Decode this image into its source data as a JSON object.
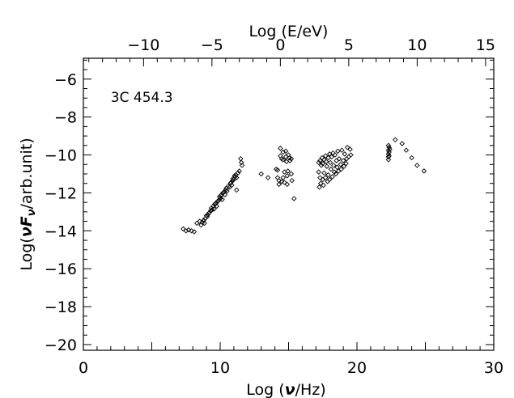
{
  "chart_data": {
    "type": "scatter",
    "source_annotation": "3C 454.3",
    "xlabel_prefix": "Log (",
    "xlabel_symbol": "ν",
    "xlabel_suffix": "/Hz)",
    "ylabel_prefix": "Log(",
    "ylabel_symbol": "νF",
    "ylabel_sub": "ν",
    "ylabel_suffix": "/arb.unit)",
    "top_xlabel": "Log (E/eV)",
    "xlim": [
      0,
      30
    ],
    "ylim": [
      -20.3,
      -4.9
    ],
    "top_xlim": [
      -14.4,
      15.6
    ],
    "x_ticks": [
      0,
      10,
      20,
      30
    ],
    "x_tick_labels": [
      "0",
      "10",
      "20",
      "30"
    ],
    "y_ticks": [
      -20,
      -18,
      -16,
      -14,
      -12,
      -10,
      -8,
      -6
    ],
    "y_tick_labels": [
      "−20",
      "−18",
      "−16",
      "−14",
      "−12",
      "−10",
      "−8",
      "−6"
    ],
    "top_x_ticks": [
      -10,
      -5,
      0,
      5,
      10,
      15
    ],
    "top_x_tick_labels": [
      "−10",
      "−5",
      "0",
      "5",
      "10",
      "15"
    ],
    "marker": "diamond-open",
    "series": [
      {
        "points": [
          [
            7.3,
            -13.9
          ],
          [
            7.5,
            -14.0
          ],
          [
            7.7,
            -13.95
          ],
          [
            7.9,
            -14.0
          ],
          [
            8.1,
            -14.05
          ],
          [
            8.3,
            -13.6
          ],
          [
            8.5,
            -13.5
          ],
          [
            8.6,
            -13.7
          ],
          [
            8.7,
            -13.55
          ],
          [
            8.8,
            -13.45
          ],
          [
            8.85,
            -13.6
          ],
          [
            8.9,
            -13.35
          ],
          [
            9.0,
            -13.2
          ],
          [
            9.05,
            -13.25
          ],
          [
            9.1,
            -13.15
          ],
          [
            9.2,
            -13.05
          ],
          [
            9.3,
            -12.95
          ],
          [
            9.35,
            -12.8
          ],
          [
            9.4,
            -12.9
          ],
          [
            9.5,
            -12.7
          ],
          [
            9.55,
            -12.85
          ],
          [
            9.6,
            -12.6
          ],
          [
            9.7,
            -12.55
          ],
          [
            9.75,
            -12.7
          ],
          [
            9.8,
            -12.45
          ],
          [
            9.9,
            -12.4
          ],
          [
            9.95,
            -12.2
          ],
          [
            10.0,
            -12.3
          ],
          [
            10.05,
            -12.15
          ],
          [
            10.1,
            -12.1
          ],
          [
            10.15,
            -12.35
          ],
          [
            10.2,
            -12.0
          ],
          [
            10.3,
            -11.95
          ],
          [
            10.35,
            -12.1
          ],
          [
            10.4,
            -11.85
          ],
          [
            10.45,
            -11.75
          ],
          [
            10.5,
            -11.9
          ],
          [
            10.6,
            -11.65
          ],
          [
            10.7,
            -11.7
          ],
          [
            10.75,
            -11.5
          ],
          [
            10.8,
            -11.45
          ],
          [
            10.85,
            -11.6
          ],
          [
            10.9,
            -11.35
          ],
          [
            10.95,
            -11.25
          ],
          [
            11.0,
            -11.3
          ],
          [
            11.05,
            -11.1
          ],
          [
            11.1,
            -11.15
          ],
          [
            11.15,
            -11.05
          ],
          [
            11.2,
            -11.2
          ],
          [
            11.2,
            -11.85
          ],
          [
            11.3,
            -10.95
          ],
          [
            11.4,
            -10.85
          ],
          [
            11.5,
            -10.2
          ],
          [
            11.55,
            -10.4
          ],
          [
            11.6,
            -10.55
          ],
          [
            13.0,
            -11.0
          ],
          [
            13.5,
            -11.2
          ],
          [
            14.1,
            -10.75
          ],
          [
            14.2,
            -10.8
          ],
          [
            14.2,
            -11.2
          ],
          [
            14.3,
            -11.35
          ],
          [
            14.3,
            -11.55
          ],
          [
            14.4,
            -9.65
          ],
          [
            14.4,
            -10.05
          ],
          [
            14.5,
            -10.2
          ],
          [
            14.5,
            -11.4
          ],
          [
            14.6,
            -9.85
          ],
          [
            14.6,
            -10.25
          ],
          [
            14.6,
            -11.2
          ],
          [
            14.7,
            -10.9
          ],
          [
            14.7,
            -11.45
          ],
          [
            14.8,
            -9.8
          ],
          [
            14.8,
            -10.1
          ],
          [
            14.85,
            -10.35
          ],
          [
            14.9,
            -11.1
          ],
          [
            14.9,
            -11.55
          ],
          [
            14.95,
            -10.85
          ],
          [
            15.0,
            -10.0
          ],
          [
            15.05,
            -10.15
          ],
          [
            15.1,
            -10.3
          ],
          [
            15.2,
            -10.2
          ],
          [
            15.2,
            -11.0
          ],
          [
            15.25,
            -11.35
          ],
          [
            15.4,
            -12.3
          ],
          [
            17.2,
            -10.4
          ],
          [
            17.2,
            -10.9
          ],
          [
            17.25,
            -11.7
          ],
          [
            17.3,
            -10.3
          ],
          [
            17.3,
            -11.2
          ],
          [
            17.35,
            -11.5
          ],
          [
            17.4,
            -10.55
          ],
          [
            17.45,
            -10.15
          ],
          [
            17.5,
            -10.45
          ],
          [
            17.5,
            -11.3
          ],
          [
            17.55,
            -11.6
          ],
          [
            17.6,
            -10.25
          ],
          [
            17.6,
            -10.95
          ],
          [
            17.7,
            -10.05
          ],
          [
            17.7,
            -11.2
          ],
          [
            17.75,
            -10.35
          ],
          [
            17.8,
            -10.6
          ],
          [
            17.85,
            -11.4
          ],
          [
            17.9,
            -10.15
          ],
          [
            17.9,
            -11.05
          ],
          [
            18.0,
            -9.95
          ],
          [
            18.0,
            -11.3
          ],
          [
            18.05,
            -10.4
          ],
          [
            18.1,
            -10.75
          ],
          [
            18.15,
            -10.1
          ],
          [
            18.2,
            -11.15
          ],
          [
            18.25,
            -9.9
          ],
          [
            18.3,
            -10.55
          ],
          [
            18.35,
            -10.9
          ],
          [
            18.4,
            -10.0
          ],
          [
            18.45,
            -11.0
          ],
          [
            18.5,
            -10.3
          ],
          [
            18.55,
            -10.65
          ],
          [
            18.6,
            -9.8
          ],
          [
            18.65,
            -10.85
          ],
          [
            18.7,
            -10.2
          ],
          [
            18.8,
            -10.5
          ],
          [
            18.85,
            -10.75
          ],
          [
            18.9,
            -9.75
          ],
          [
            19.0,
            -10.3
          ],
          [
            19.05,
            -10.6
          ],
          [
            19.1,
            -9.95
          ],
          [
            19.2,
            -10.45
          ],
          [
            19.25,
            -10.2
          ],
          [
            19.3,
            -9.6
          ],
          [
            19.4,
            -10.1
          ],
          [
            19.5,
            -9.7
          ],
          [
            19.55,
            -10.0
          ],
          [
            22.3,
            -9.5
          ],
          [
            22.3,
            -9.75
          ],
          [
            22.3,
            -9.95
          ],
          [
            22.3,
            -10.1
          ],
          [
            22.3,
            -10.25
          ],
          [
            22.35,
            -9.6
          ],
          [
            22.35,
            -9.85
          ],
          [
            22.35,
            -10.05
          ],
          [
            22.4,
            -9.7
          ],
          [
            22.8,
            -9.2
          ],
          [
            23.3,
            -9.4
          ],
          [
            23.6,
            -9.75
          ],
          [
            24.0,
            -10.15
          ],
          [
            24.4,
            -10.55
          ],
          [
            24.9,
            -10.85
          ]
        ]
      }
    ]
  }
}
